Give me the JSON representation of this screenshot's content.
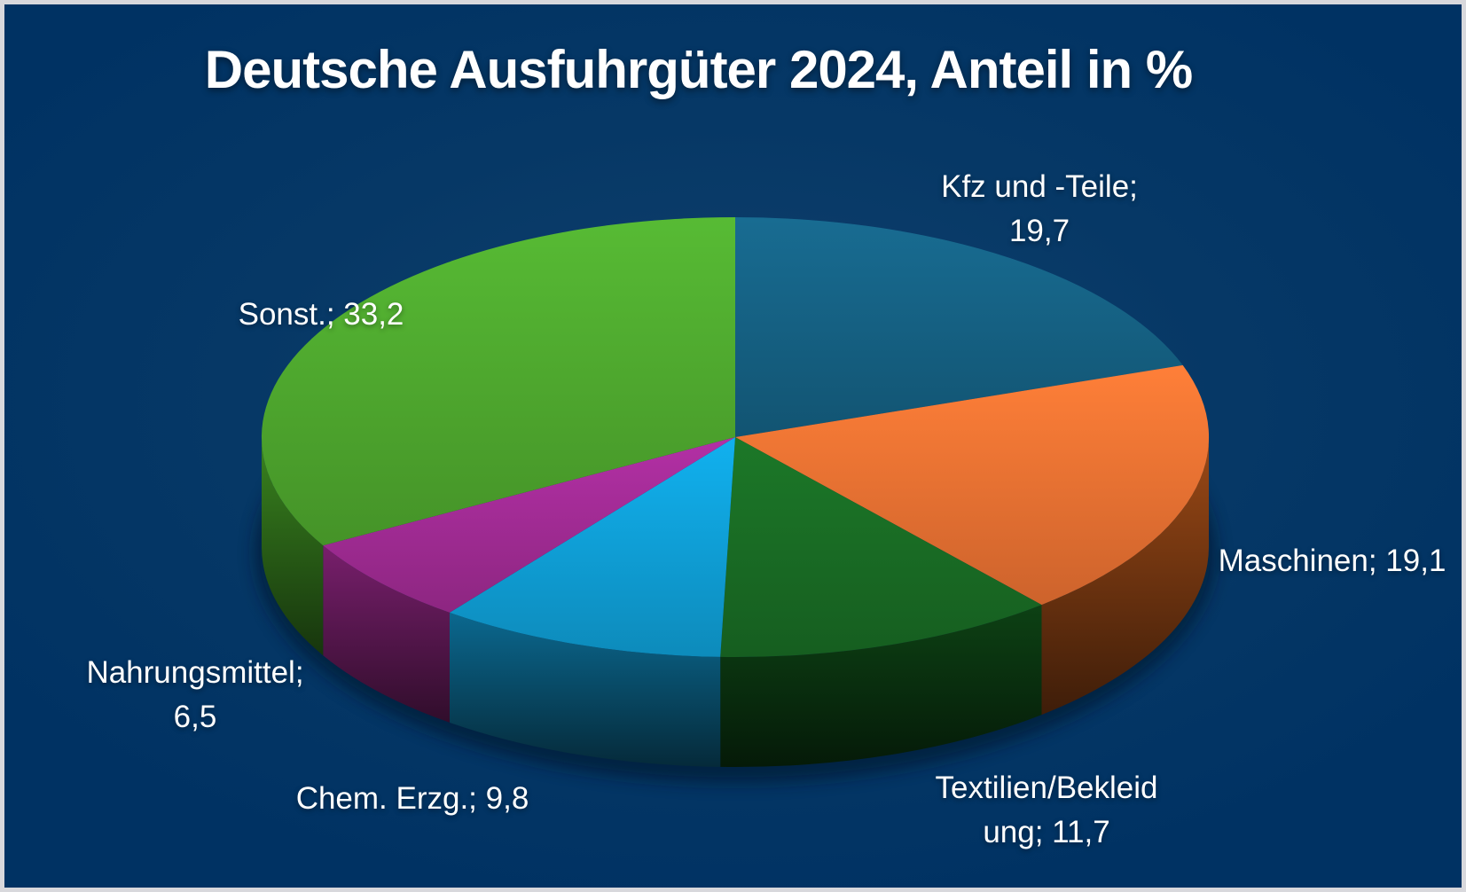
{
  "page": {
    "background_color": "#063866",
    "frame_color": "#d8d8dc",
    "text_color": "#ffffff"
  },
  "title": "Deutsche Ausfuhrgüter 2024, Anteil in %",
  "chart_data": {
    "type": "pie",
    "style": "3d",
    "title": "Deutsche Ausfuhrgüter 2024, Anteil in %",
    "unit": "%",
    "total": 100,
    "start_angle_deg": 0,
    "direction": "clockwise",
    "legend": "none",
    "categories": [
      "Kfz und -Teile",
      "Maschinen",
      "Textilien/Bekleidung",
      "Chem. Erzg.",
      "Nahrungsmittel",
      "Sonst."
    ],
    "values": [
      19.7,
      19.1,
      11.7,
      9.8,
      6.5,
      33.2
    ],
    "slices": [
      {
        "category": "Kfz und -Teile",
        "value": 19.7,
        "color": "#156082",
        "side_color": "#123f55",
        "label_line1": "Kfz und -Teile;",
        "label_line2": "19,7"
      },
      {
        "category": "Maschinen",
        "value": 19.1,
        "color": "#E97132",
        "side_color": "#8a4114",
        "label_line1": "Maschinen; 19,1",
        "label_line2": ""
      },
      {
        "category": "Textilien/Bekleidung",
        "value": 11.7,
        "color": "#196B24",
        "side_color": "#0c3a12",
        "label_line1": "Textilien/Bekleid",
        "label_line2": "ung; 11,7"
      },
      {
        "category": "Chem. Erzg.",
        "value": 9.8,
        "color": "#0F9ED5",
        "side_color": "#0a5d80",
        "label_line1": "Chem. Erzg.; 9,8",
        "label_line2": ""
      },
      {
        "category": "Nahrungsmittel",
        "value": 6.5,
        "color": "#A02B93",
        "side_color": "#6b1c60",
        "label_line1": "Nahrungsmittel;",
        "label_line2": "6,5"
      },
      {
        "category": "Sonst.",
        "value": 33.2,
        "color": "#4EA72E",
        "side_color": "#33761c",
        "label_line1": "Sonst.; 33,2",
        "label_line2": ""
      }
    ]
  }
}
